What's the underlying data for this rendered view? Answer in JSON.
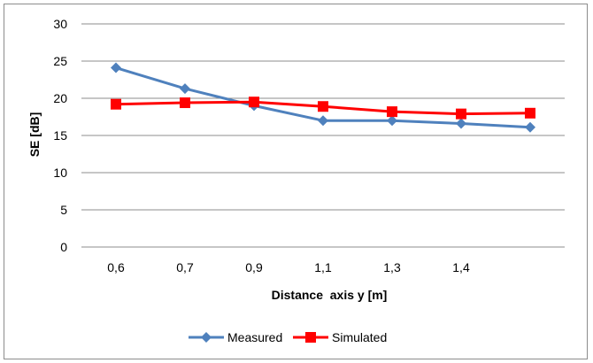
{
  "chart_data": {
    "type": "line",
    "categories": [
      "0,6",
      "0,7",
      "0,9",
      "1,1",
      "1,3",
      "1,4",
      ""
    ],
    "series": [
      {
        "name": "Measured",
        "values": [
          24.1,
          21.3,
          19.0,
          17.0,
          17.0,
          16.6,
          16.1
        ],
        "color": "#4f81bd",
        "marker": "diamond"
      },
      {
        "name": "Simulated",
        "values": [
          19.2,
          19.4,
          19.5,
          18.9,
          18.2,
          17.9,
          18.0
        ],
        "color": "#ff0000",
        "marker": "square"
      }
    ],
    "yticks": [
      "0",
      "5",
      "10",
      "15",
      "20",
      "25",
      "30"
    ],
    "ylim": [
      0,
      30
    ],
    "xlabel": "Distance  axis y [m]",
    "ylabel": "SE [dB]",
    "grid": "horizontal",
    "legend": "bottom"
  }
}
